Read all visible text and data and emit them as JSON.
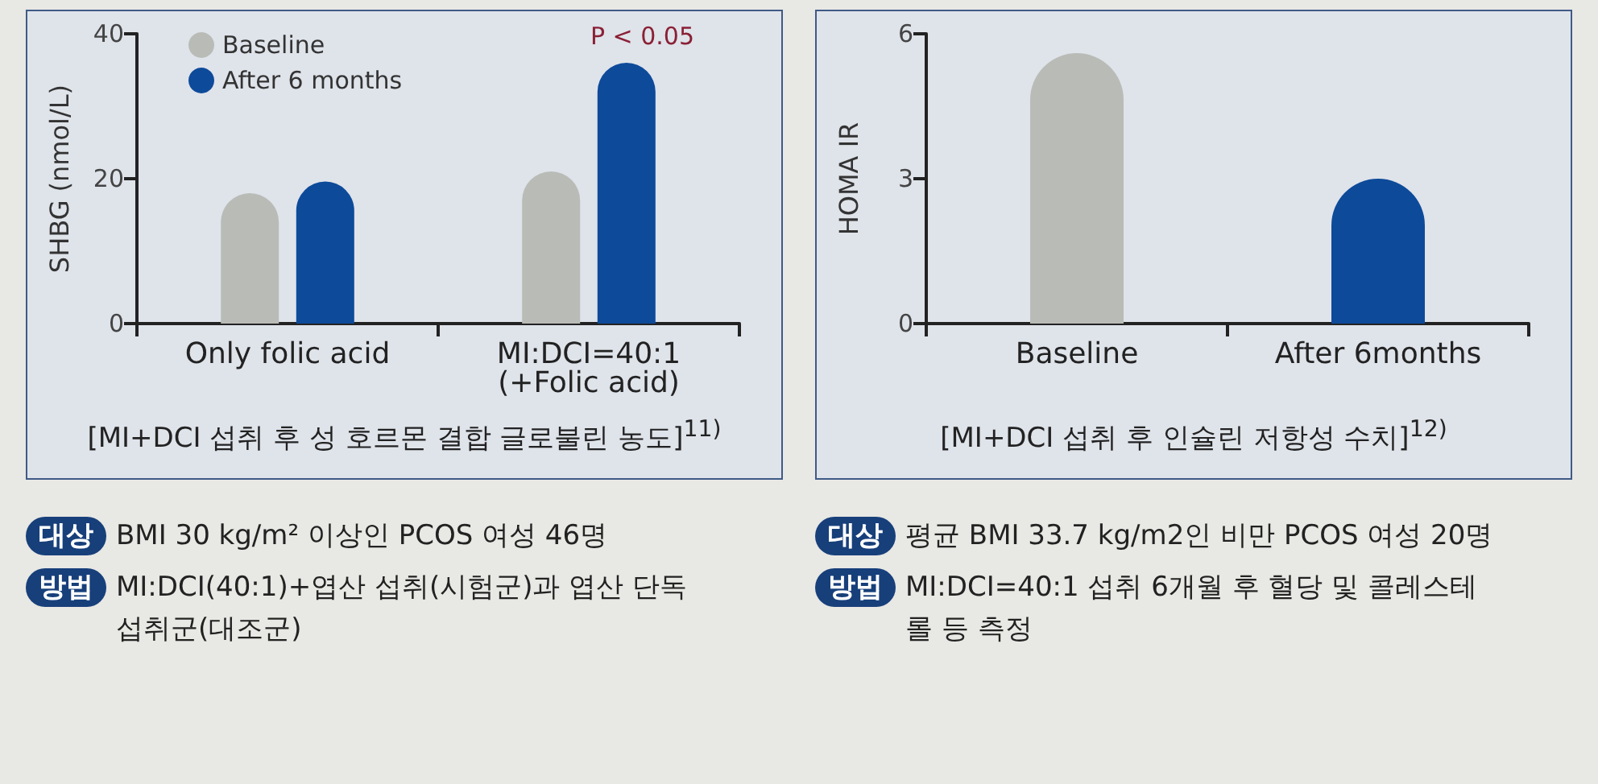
{
  "chart_data": [
    {
      "type": "bar",
      "ylabel": "SHBG (nmol/L)",
      "categories": [
        "Only folic acid",
        "MI:DCI=40:1\n(+Folic acid)"
      ],
      "series": [
        {
          "name": "Baseline",
          "color": "#b9bcb6",
          "values": [
            18,
            21
          ]
        },
        {
          "name": "After 6 months",
          "color": "#0d4a9a",
          "values": [
            19.6,
            36
          ]
        }
      ],
      "ylim": [
        0,
        40
      ],
      "yticks": [
        0,
        20,
        40
      ],
      "grid": false,
      "legend": "top left",
      "annotations": [
        "[MI+DCI 섭취 후 성 호르몬 결합 글로불린 농도]$^{11)}$",
        "P < 0.05",
        "대상",
        "BMI 30 kg/m² 이상인 PCOS 여성 46명",
        "방법",
        "MI:DCI(40:1)+엽산 섭취(시험군)과 엽산 단독 섭취군(대조군)"
      ]
    },
    {
      "type": "bar",
      "ylabel": "HOMA IR",
      "categories": [
        "Baseline",
        "After 6months"
      ],
      "values": [
        5.6,
        3.0
      ],
      "colors": [
        "#b9bcb6",
        "#0d4a9a"
      ],
      "ylim": [
        0,
        6
      ],
      "yticks": [
        0,
        3,
        6
      ],
      "grid": false,
      "legend": false,
      "annotations": [
        "[MI+DCI 섭취 후 인슐린 저항성 수치]$^{12)}$",
        "대상",
        "평균 BMI 33.7 kg/m2인 비만 PCOS 여성 20명",
        "방법",
        "MI:DCI=40:1 섭취 6개월 후 혈당 및 콜레스테롤 등 측정"
      ]
    }
  ]
}
